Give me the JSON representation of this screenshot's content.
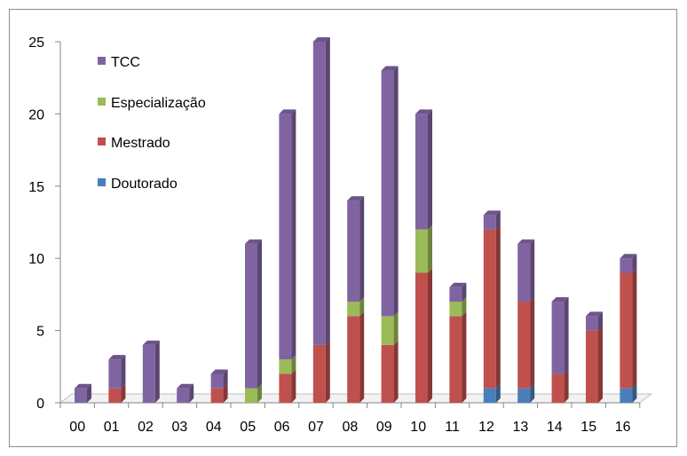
{
  "chart_data": {
    "type": "bar",
    "stacked": true,
    "three_d": true,
    "categories": [
      "00",
      "01",
      "02",
      "03",
      "04",
      "05",
      "06",
      "07",
      "08",
      "09",
      "10",
      "11",
      "12",
      "13",
      "14",
      "15",
      "16"
    ],
    "series": [
      {
        "name": "Doutorado",
        "color": "#4a7ebb",
        "values": [
          0,
          0,
          0,
          0,
          0,
          0,
          0,
          0,
          0,
          0,
          0,
          0,
          1,
          1,
          0,
          0,
          1
        ]
      },
      {
        "name": "Mestrado",
        "color": "#c0504d",
        "values": [
          0,
          1,
          0,
          0,
          1,
          0,
          2,
          4,
          6,
          4,
          9,
          6,
          11,
          6,
          2,
          5,
          8
        ]
      },
      {
        "name": "Especialização",
        "color": "#9bbb59",
        "values": [
          0,
          0,
          0,
          0,
          0,
          1,
          1,
          0,
          1,
          2,
          3,
          1,
          0,
          0,
          0,
          0,
          0
        ]
      },
      {
        "name": "TCC",
        "color": "#8064a2",
        "values": [
          1,
          2,
          4,
          1,
          1,
          10,
          17,
          21,
          7,
          17,
          8,
          1,
          1,
          4,
          5,
          1,
          1
        ]
      }
    ],
    "y_ticks": [
      0,
      5,
      10,
      15,
      20,
      25
    ],
    "ylim": [
      0,
      25
    ],
    "legend_order": [
      "TCC",
      "Especialização",
      "Mestrado",
      "Doutorado"
    ],
    "legend_position": "top-left"
  }
}
